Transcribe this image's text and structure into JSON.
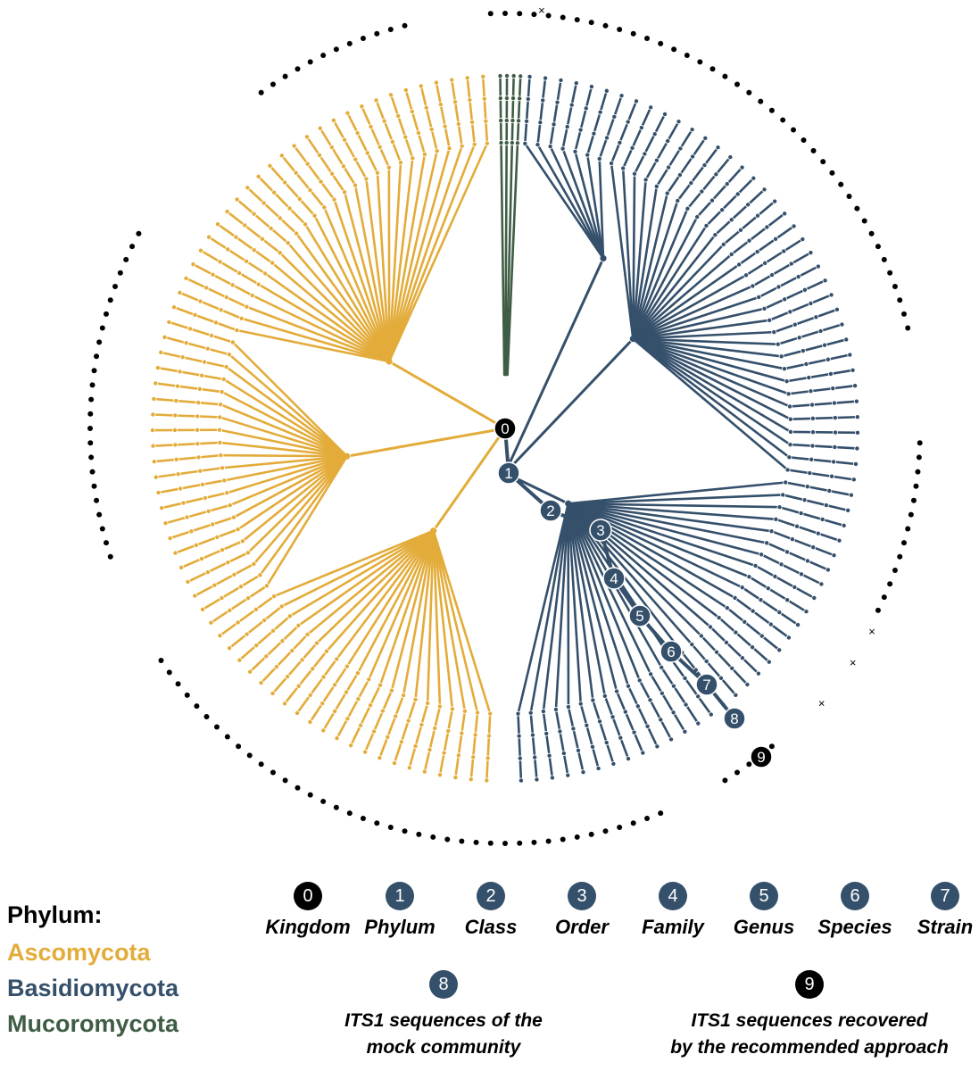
{
  "colors": {
    "ascomycota": "#e3ac3a",
    "basidiomycota": "#35506b",
    "mucoromycota": "#3f5d45",
    "black": "#000000"
  },
  "phylum_legend": {
    "title": "Phylum:",
    "items": [
      {
        "label": "Ascomycota",
        "color": "#e3ac3a"
      },
      {
        "label": "Basidiomycota",
        "color": "#35506b"
      },
      {
        "label": "Mucoromycota",
        "color": "#3f5d45"
      }
    ]
  },
  "rank_legend": [
    {
      "number": "0",
      "label": "Kingdom",
      "color": "#000000"
    },
    {
      "number": "1",
      "label": "Phylum",
      "color": "#35506b"
    },
    {
      "number": "2",
      "label": "Class",
      "color": "#35506b"
    },
    {
      "number": "3",
      "label": "Order",
      "color": "#35506b"
    },
    {
      "number": "4",
      "label": "Family",
      "color": "#35506b"
    },
    {
      "number": "5",
      "label": "Genus",
      "color": "#35506b"
    },
    {
      "number": "6",
      "label": "Species",
      "color": "#35506b"
    },
    {
      "number": "7",
      "label": "Strain",
      "color": "#35506b"
    }
  ],
  "sequence_legend": [
    {
      "number": "8",
      "line1": "ITS1 sequences of the",
      "line2": "mock community",
      "color": "#35506b"
    },
    {
      "number": "9",
      "line1": "ITS1 sequences recovered",
      "line2": "by the recommended approach",
      "color": "#000000"
    }
  ],
  "tree_markers": [
    {
      "number": "0",
      "color": "#000000"
    },
    {
      "number": "1",
      "color": "#35506b"
    },
    {
      "number": "2",
      "color": "#35506b"
    },
    {
      "number": "3",
      "color": "#35506b"
    },
    {
      "number": "4",
      "color": "#35506b"
    },
    {
      "number": "5",
      "color": "#35506b"
    },
    {
      "number": "6",
      "color": "#35506b"
    },
    {
      "number": "7",
      "color": "#35506b"
    },
    {
      "number": "8",
      "color": "#35506b"
    },
    {
      "number": "9",
      "color": "#000000"
    }
  ],
  "missing_marker": "×"
}
